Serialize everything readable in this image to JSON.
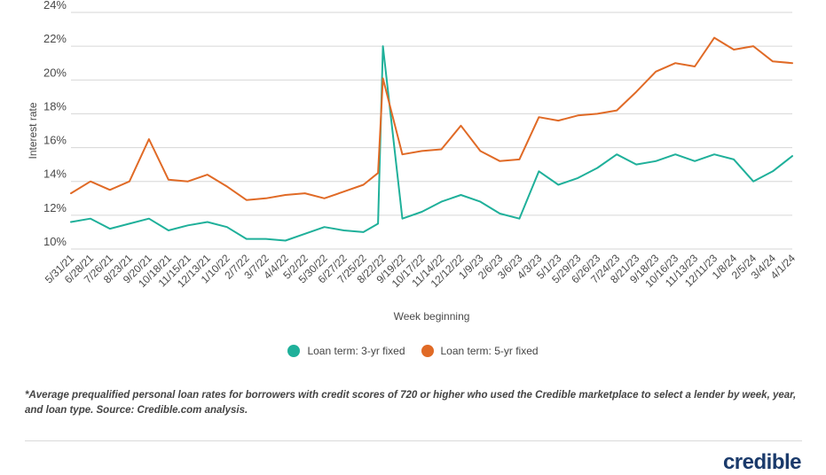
{
  "chart_data": {
    "type": "line",
    "xlabel": "Week beginning",
    "ylabel": "Interest rate",
    "ylim": [
      10,
      24
    ],
    "yticks": [
      "10%",
      "12%",
      "14%",
      "16%",
      "18%",
      "20%",
      "22%",
      "24%"
    ],
    "grid": "horizontal",
    "legend_position": "bottom-center",
    "x_ticks": [
      "5/31/21",
      "6/28/21",
      "7/26/21",
      "8/23/21",
      "9/20/21",
      "10/18/21",
      "11/15/21",
      "12/13/21",
      "1/10/22",
      "2/7/22",
      "3/7/22",
      "4/4/22",
      "5/2/22",
      "5/30/22",
      "6/27/22",
      "7/25/22",
      "8/22/22",
      "9/19/22",
      "10/17/22",
      "11/14/22",
      "12/12/22",
      "1/9/23",
      "2/6/23",
      "3/6/23",
      "4/3/23",
      "5/1/23",
      "5/29/23",
      "6/26/23",
      "7/24/23",
      "8/21/23",
      "9/18/23",
      "10/16/23",
      "11/13/23",
      "12/11/23",
      "1/8/24",
      "2/5/24",
      "3/4/24",
      "4/1/24"
    ],
    "x": [
      "5/31/21",
      "6/28/21",
      "7/26/21",
      "8/23/21",
      "9/20/21",
      "10/18/21",
      "11/15/21",
      "12/13/21",
      "1/10/22",
      "2/7/22",
      "3/7/22",
      "4/4/22",
      "5/2/22",
      "5/30/22",
      "6/27/22",
      "7/25/22",
      "8/15/22",
      "8/22/22",
      "9/19/22",
      "10/17/22",
      "11/14/22",
      "12/12/22",
      "1/9/23",
      "2/6/23",
      "3/6/23",
      "4/3/23",
      "5/1/23",
      "5/29/23",
      "6/26/23",
      "7/24/23",
      "8/21/23",
      "9/18/23",
      "10/16/23",
      "11/13/23",
      "12/11/23",
      "1/8/24",
      "2/5/24",
      "3/4/24",
      "4/1/24"
    ],
    "series": [
      {
        "name": "Loan term: 3-yr fixed",
        "color": "#1fb09a",
        "values": [
          11.6,
          11.8,
          11.2,
          11.5,
          11.8,
          11.1,
          11.4,
          11.6,
          11.3,
          10.6,
          10.6,
          10.5,
          10.9,
          11.3,
          11.1,
          11.0,
          11.5,
          22.0,
          11.8,
          12.2,
          12.8,
          13.2,
          12.8,
          12.1,
          11.8,
          14.6,
          13.8,
          14.2,
          14.8,
          15.6,
          15.0,
          15.2,
          15.6,
          15.2,
          15.6,
          15.3,
          14.0,
          14.6,
          15.5
        ]
      },
      {
        "name": "Loan term: 5-yr fixed",
        "color": "#e06a26",
        "values": [
          13.3,
          14.0,
          13.5,
          14.0,
          16.5,
          14.1,
          14.0,
          14.4,
          13.7,
          12.9,
          13.0,
          13.2,
          13.3,
          13.0,
          13.4,
          13.8,
          14.5,
          20.1,
          15.6,
          15.8,
          15.9,
          17.3,
          15.8,
          15.2,
          15.3,
          17.8,
          17.6,
          17.9,
          18.0,
          18.2,
          19.3,
          20.5,
          21.0,
          20.8,
          22.5,
          21.8,
          22.0,
          21.1,
          21.0
        ]
      }
    ]
  },
  "legend": [
    {
      "label": "Loan term: 3-yr fixed",
      "color": "#1fb09a"
    },
    {
      "label": "Loan term: 5-yr fixed",
      "color": "#e06a26"
    }
  ],
  "footnote": "*Average prequalified personal loan rates for borrowers with credit scores of 720 or higher who used the Credible marketplace to select a lender by week, year, and loan type. Source: Credible.com analysis.",
  "brand": "credible"
}
